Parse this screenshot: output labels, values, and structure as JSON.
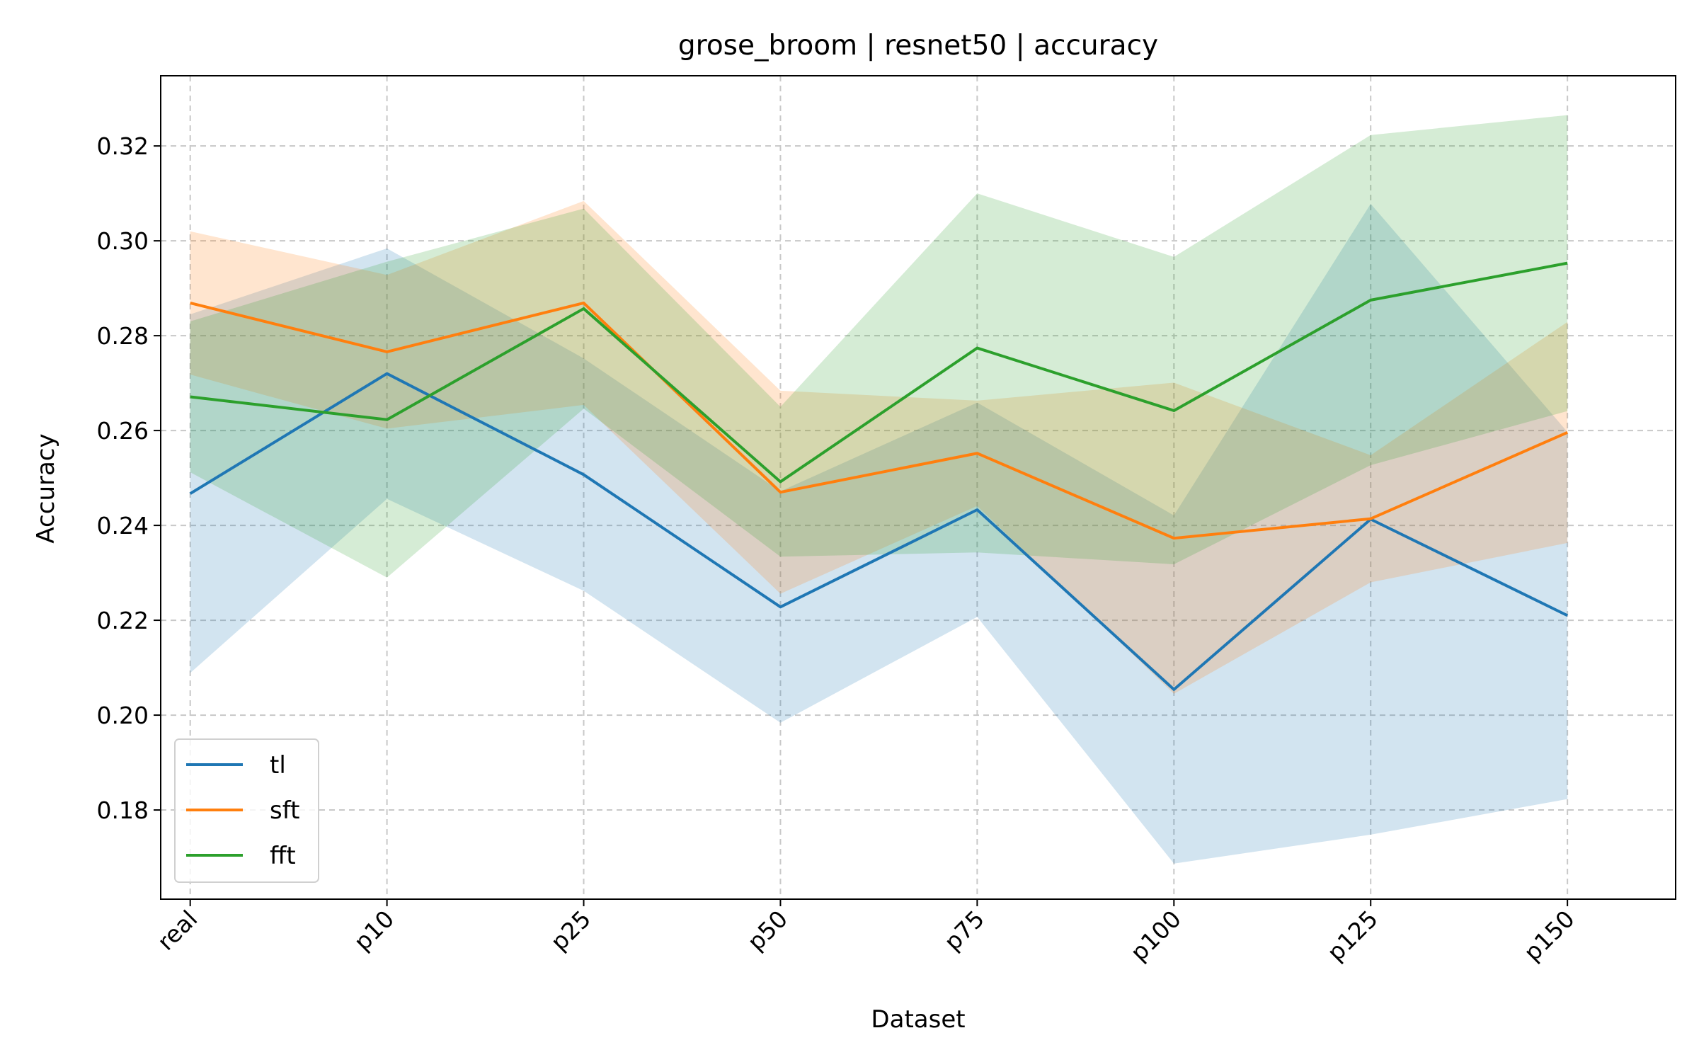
{
  "chart_data": {
    "type": "line",
    "title": "grose_broom | resnet50 | accuracy",
    "xlabel": "Dataset",
    "ylabel": "Accuracy",
    "categories": [
      "real",
      "p10",
      "p25",
      "p50",
      "p75",
      "p100",
      "p125",
      "p150"
    ],
    "ylim": [
      0.1612,
      0.3348
    ],
    "yticks": [
      0.18,
      0.2,
      0.22,
      0.24,
      0.26,
      0.28,
      0.3,
      0.32
    ],
    "ytick_labels": [
      "0.18",
      "0.20",
      "0.22",
      "0.24",
      "0.26",
      "0.28",
      "0.30",
      "0.32"
    ],
    "grid": true,
    "legend_position": "lower-left",
    "series": [
      {
        "name": "tl",
        "color": "#1f77b4",
        "values": [
          0.2467,
          0.272,
          0.2507,
          0.2228,
          0.2433,
          0.2054,
          0.2413,
          0.221
        ],
        "lower": [
          0.2089,
          0.2456,
          0.2262,
          0.1984,
          0.2207,
          0.1687,
          0.1748,
          0.1823
        ],
        "upper": [
          0.2845,
          0.2984,
          0.2752,
          0.2472,
          0.2659,
          0.2421,
          0.3078,
          0.2597
        ]
      },
      {
        "name": "sft",
        "color": "#ff7f0e",
        "values": [
          0.2869,
          0.2766,
          0.2869,
          0.247,
          0.2552,
          0.2373,
          0.2414,
          0.2596
        ],
        "lower": [
          0.2718,
          0.2604,
          0.2654,
          0.2256,
          0.2441,
          0.2045,
          0.228,
          0.2363
        ],
        "upper": [
          0.302,
          0.2928,
          0.3084,
          0.2684,
          0.2663,
          0.2701,
          0.2548,
          0.2829
        ]
      },
      {
        "name": "fft",
        "color": "#2ca02c",
        "values": [
          0.2671,
          0.2623,
          0.2857,
          0.2492,
          0.2774,
          0.2642,
          0.2875,
          0.2953
        ],
        "lower": [
          0.2512,
          0.229,
          0.2646,
          0.2334,
          0.2343,
          0.2318,
          0.2527,
          0.2641
        ],
        "upper": [
          0.283,
          0.2956,
          0.3068,
          0.265,
          0.31,
          0.2966,
          0.3223,
          0.3265
        ]
      }
    ]
  }
}
